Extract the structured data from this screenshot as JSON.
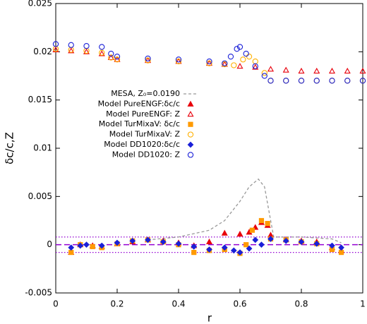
{
  "chart_data": {
    "type": "scatter",
    "x_label": "r",
    "y_label": "δc/c,Z",
    "xlim": [
      0,
      1
    ],
    "ylim": [
      -0.005,
      0.025
    ],
    "xticks": [
      0,
      0.2,
      0.4,
      0.6,
      0.8,
      1
    ],
    "yticks": [
      -0.005,
      0,
      0.005,
      0.01,
      0.015,
      0.02,
      0.025
    ],
    "grid": false,
    "legend": "upper-left",
    "hlines": [
      {
        "value": 0,
        "color": "#9400d3",
        "style": "dashed"
      },
      {
        "value": 0.0008,
        "color": "#9400d3",
        "style": "dotted"
      },
      {
        "value": -0.0008,
        "color": "#9400d3",
        "style": "dotted"
      }
    ],
    "series": [
      {
        "name": "MESA, Z₀=0.0190",
        "color": "#999999",
        "marker": "line",
        "x": [
          0.3,
          0.4,
          0.5,
          0.55,
          0.6,
          0.63,
          0.66,
          0.68,
          0.7,
          0.71,
          0.8,
          0.9,
          0.93
        ],
        "values": [
          0.0005,
          0.0008,
          0.0015,
          0.0025,
          0.0045,
          0.006,
          0.0068,
          0.006,
          0.0025,
          0.0008,
          0.0008,
          0.0006,
          0.0002
        ]
      },
      {
        "name": "Model PureENGF:δc/c",
        "color": "#e8000b",
        "marker": "triangle-filled",
        "x": [
          0.05,
          0.08,
          0.12,
          0.15,
          0.2,
          0.25,
          0.3,
          0.35,
          0.4,
          0.45,
          0.5,
          0.55,
          0.6,
          0.63,
          0.65,
          0.67,
          0.69,
          0.7,
          0.75,
          0.8,
          0.85,
          0.9,
          0.93
        ],
        "values": [
          -0.0008,
          0,
          -0.0001,
          -0.0002,
          0.0001,
          0.0003,
          0.0005,
          0.0004,
          0.0002,
          -0.0001,
          0.0003,
          0.0012,
          0.0011,
          0.0013,
          0.0018,
          0.0023,
          0.002,
          0.001,
          0.0005,
          0.0004,
          0.0003,
          -0.0003,
          -0.0006
        ]
      },
      {
        "name": "Model PureENGF: Z",
        "color": "#e8000b",
        "marker": "triangle-open",
        "x": [
          0,
          0.05,
          0.1,
          0.15,
          0.18,
          0.2,
          0.3,
          0.4,
          0.5,
          0.55,
          0.6,
          0.65,
          0.7,
          0.75,
          0.8,
          0.85,
          0.9,
          0.95,
          1
        ],
        "values": [
          0.0202,
          0.0201,
          0.02,
          0.0198,
          0.0194,
          0.0192,
          0.0191,
          0.019,
          0.0188,
          0.0187,
          0.0185,
          0.0184,
          0.0182,
          0.0181,
          0.018,
          0.018,
          0.018,
          0.018,
          0.018
        ]
      },
      {
        "name": "Model TurMixaV: δc/c",
        "color": "#ff9a00",
        "marker": "square-filled",
        "x": [
          0.05,
          0.08,
          0.12,
          0.15,
          0.2,
          0.25,
          0.3,
          0.35,
          0.4,
          0.45,
          0.5,
          0.55,
          0.6,
          0.62,
          0.64,
          0.67,
          0.69,
          0.7,
          0.75,
          0.8,
          0.85,
          0.9,
          0.93
        ],
        "values": [
          -0.0008,
          0,
          -0.0002,
          -0.0003,
          0.0001,
          0.0004,
          0.0005,
          0.0003,
          0,
          -0.0008,
          -0.0006,
          -0.0005,
          -0.0009,
          0,
          0.0015,
          0.0025,
          0.0022,
          0.0006,
          0.0005,
          0.0003,
          0.0001,
          -0.0005,
          -0.0008
        ]
      },
      {
        "name": "Model TurMixaV: Z",
        "color": "#ffb000",
        "marker": "circle-open",
        "x": [
          0,
          0.05,
          0.1,
          0.15,
          0.18,
          0.2,
          0.3,
          0.4,
          0.5,
          0.55,
          0.58,
          0.61,
          0.63,
          0.65,
          0.68,
          0.7,
          0.75,
          0.8,
          0.85,
          0.9,
          0.95,
          1
        ],
        "values": [
          0.0203,
          0.0202,
          0.0201,
          0.0199,
          0.0194,
          0.0192,
          0.0191,
          0.019,
          0.0188,
          0.0187,
          0.0186,
          0.0192,
          0.0195,
          0.019,
          0.0178,
          0.017,
          0.017,
          0.017,
          0.017,
          0.017,
          0.017,
          0.017
        ]
      },
      {
        "name": "Model DD1020:δc/c",
        "color": "#1a20d8",
        "marker": "diamond-filled",
        "x": [
          0.05,
          0.08,
          0.1,
          0.15,
          0.2,
          0.25,
          0.3,
          0.35,
          0.4,
          0.45,
          0.5,
          0.55,
          0.58,
          0.6,
          0.63,
          0.65,
          0.67,
          0.7,
          0.75,
          0.8,
          0.85,
          0.9,
          0.93
        ],
        "values": [
          -0.0003,
          -0.0001,
          0,
          -0.0001,
          0.0002,
          0.0004,
          0.0005,
          0.0003,
          0.0001,
          -0.0002,
          -0.0005,
          -0.0003,
          -0.0006,
          -0.0008,
          -0.0004,
          0.0005,
          0,
          0.0006,
          0.0004,
          0.0003,
          0.0001,
          -0.0001,
          -0.0003
        ]
      },
      {
        "name": "Model DD1020: Z",
        "color": "#1a20d8",
        "marker": "circle-open",
        "x": [
          0,
          0.05,
          0.1,
          0.15,
          0.18,
          0.2,
          0.3,
          0.4,
          0.5,
          0.55,
          0.57,
          0.59,
          0.6,
          0.62,
          0.65,
          0.68,
          0.7,
          0.75,
          0.8,
          0.85,
          0.9,
          0.95,
          1
        ],
        "values": [
          0.0208,
          0.0207,
          0.0206,
          0.0205,
          0.0198,
          0.0195,
          0.0193,
          0.0192,
          0.019,
          0.0188,
          0.0195,
          0.0203,
          0.0205,
          0.0198,
          0.0185,
          0.0175,
          0.017,
          0.017,
          0.017,
          0.017,
          0.017,
          0.017,
          0.017
        ]
      }
    ]
  }
}
